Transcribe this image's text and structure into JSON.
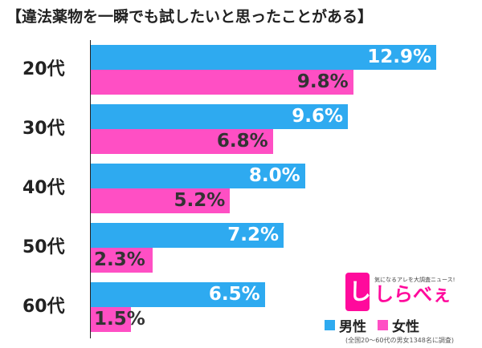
{
  "title": "【違法薬物を一瞬でも試したいと思ったことがある】",
  "colors": {
    "male": "#2eaaf0",
    "female": "#ff4fc4"
  },
  "chart_data": {
    "type": "bar",
    "orientation": "horizontal",
    "categories": [
      "20代",
      "30代",
      "40代",
      "50代",
      "60代"
    ],
    "series": [
      {
        "name": "男性",
        "values": [
          12.9,
          9.6,
          8.0,
          7.2,
          6.5
        ],
        "labels": [
          "12.9%",
          "9.6%",
          "8.0%",
          "7.2%",
          "6.5%"
        ]
      },
      {
        "name": "女性",
        "values": [
          9.8,
          6.8,
          5.2,
          2.3,
          1.5
        ],
        "labels": [
          "9.8%",
          "6.8%",
          "5.2%",
          "2.3%",
          "1.5%"
        ]
      }
    ],
    "xlim": [
      0,
      13.5
    ],
    "legend": "bottom-right",
    "grid": false
  },
  "legend": {
    "male": "男性",
    "female": "女性"
  },
  "footnote": "(全国20〜60代の男女1348名に調査)",
  "logo": {
    "tag_char": "し",
    "tagline": "気になるアレを大調査ニュース!",
    "name": "しらべぇ"
  }
}
